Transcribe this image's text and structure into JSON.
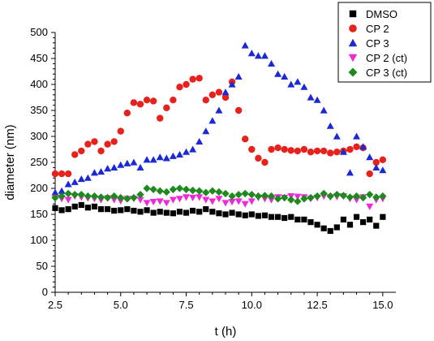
{
  "chart_data": {
    "type": "scatter",
    "xlabel": "t (h)",
    "ylabel": "diameter (nm)",
    "xlim": [
      2.5,
      15.5
    ],
    "ylim": [
      0,
      500
    ],
    "x_ticks": [
      2.5,
      5.0,
      7.5,
      10.0,
      12.5,
      15.0
    ],
    "x_tick_labels": [
      "2.5",
      "5.0",
      "7.5",
      "10.0",
      "12.5",
      "15.0"
    ],
    "y_ticks": [
      0,
      50,
      100,
      150,
      200,
      250,
      300,
      350,
      400,
      450,
      500
    ],
    "y_tick_labels": [
      "0",
      "50",
      "100",
      "150",
      "200",
      "250",
      "300",
      "350",
      "400",
      "450",
      "500"
    ],
    "grid": false,
    "legend_position": "top-right",
    "series": [
      {
        "name": "DMSO",
        "marker": "square",
        "color": "#000000",
        "x": [
          2.5,
          2.75,
          3.0,
          3.25,
          3.5,
          3.75,
          4.0,
          4.25,
          4.5,
          4.75,
          5.0,
          5.25,
          5.5,
          5.75,
          6.0,
          6.25,
          6.5,
          6.75,
          7.0,
          7.25,
          7.5,
          7.75,
          8.0,
          8.25,
          8.5,
          8.75,
          9.0,
          9.25,
          9.5,
          9.75,
          10.0,
          10.25,
          10.5,
          10.75,
          11.0,
          11.25,
          11.5,
          11.75,
          12.0,
          12.25,
          12.5,
          12.75,
          13.0,
          13.25,
          13.5,
          13.75,
          14.0,
          14.25,
          14.5,
          14.75,
          15.0
        ],
        "y": [
          162,
          158,
          160,
          165,
          168,
          163,
          165,
          160,
          160,
          157,
          158,
          160,
          157,
          155,
          158,
          153,
          155,
          153,
          152,
          155,
          153,
          157,
          155,
          160,
          155,
          152,
          150,
          153,
          150,
          148,
          150,
          147,
          148,
          145,
          145,
          143,
          145,
          140,
          140,
          135,
          130,
          123,
          118,
          125,
          140,
          130,
          145,
          135,
          140,
          128,
          145
        ]
      },
      {
        "name": "CP 2",
        "marker": "circle",
        "color": "#e8211c",
        "x": [
          2.5,
          2.75,
          3.0,
          3.25,
          3.5,
          3.75,
          4.0,
          4.25,
          4.5,
          4.75,
          5.0,
          5.25,
          5.5,
          5.75,
          6.0,
          6.25,
          6.5,
          6.75,
          7.0,
          7.25,
          7.5,
          7.75,
          8.0,
          8.25,
          8.5,
          8.75,
          9.0,
          9.25,
          9.5,
          9.75,
          10.0,
          10.25,
          10.5,
          10.75,
          11.0,
          11.25,
          11.5,
          11.75,
          12.0,
          12.25,
          12.5,
          12.75,
          13.0,
          13.25,
          13.5,
          13.75,
          14.0,
          14.25,
          14.5,
          14.75,
          15.0
        ],
        "y": [
          228,
          228,
          228,
          265,
          272,
          285,
          290,
          272,
          285,
          290,
          310,
          345,
          365,
          362,
          370,
          368,
          335,
          355,
          370,
          395,
          400,
          410,
          412,
          370,
          380,
          385,
          375,
          405,
          350,
          295,
          275,
          258,
          250,
          275,
          278,
          275,
          273,
          272,
          275,
          270,
          272,
          272,
          268,
          270,
          272,
          275,
          280,
          278,
          228,
          250,
          255
        ]
      },
      {
        "name": "CP 3",
        "marker": "triangle-up",
        "color": "#1a28d6",
        "x": [
          2.5,
          2.75,
          3.0,
          3.25,
          3.5,
          3.75,
          4.0,
          4.25,
          4.5,
          4.75,
          5.0,
          5.25,
          5.5,
          5.75,
          6.0,
          6.25,
          6.5,
          6.75,
          7.0,
          7.25,
          7.5,
          7.75,
          8.0,
          8.25,
          8.5,
          8.75,
          9.0,
          9.25,
          9.5,
          9.75,
          10.0,
          10.25,
          10.5,
          10.75,
          11.0,
          11.25,
          11.5,
          11.75,
          12.0,
          12.25,
          12.5,
          12.75,
          13.0,
          13.25,
          13.5,
          13.75,
          14.0,
          14.25,
          14.5,
          14.75,
          15.0
        ],
        "y": [
          192,
          195,
          208,
          212,
          218,
          220,
          230,
          232,
          238,
          240,
          245,
          248,
          250,
          240,
          255,
          255,
          260,
          258,
          262,
          265,
          270,
          275,
          290,
          310,
          330,
          350,
          385,
          400,
          415,
          475,
          460,
          455,
          455,
          440,
          420,
          415,
          400,
          405,
          395,
          375,
          370,
          350,
          320,
          300,
          270,
          230,
          300,
          280,
          260,
          240,
          235
        ]
      },
      {
        "name": "CP 2 (ct)",
        "marker": "triangle-down",
        "color": "#ee2ad8",
        "x": [
          2.5,
          2.75,
          3.0,
          3.25,
          3.5,
          3.75,
          4.0,
          4.25,
          4.5,
          4.75,
          5.0,
          5.25,
          5.5,
          5.75,
          6.0,
          6.25,
          6.5,
          6.75,
          7.0,
          7.25,
          7.5,
          7.75,
          8.0,
          8.25,
          8.5,
          8.75,
          9.0,
          9.25,
          9.5,
          9.75,
          10.0,
          10.25,
          10.5,
          10.75,
          11.0,
          11.25,
          11.5,
          11.75,
          12.0,
          12.25,
          12.5,
          12.75,
          13.0,
          13.25,
          13.5,
          13.75,
          14.0,
          14.25,
          14.5,
          14.75,
          15.0
        ],
        "y": [
          182,
          180,
          178,
          185,
          183,
          181,
          180,
          178,
          181,
          178,
          176,
          180,
          180,
          178,
          172,
          174,
          175,
          172,
          178,
          180,
          183,
          182,
          183,
          178,
          175,
          180,
          172,
          174,
          175,
          170,
          175,
          182,
          180,
          178,
          183,
          182,
          185,
          184,
          183,
          180,
          182,
          185,
          183,
          184,
          185,
          180,
          178,
          183,
          165,
          178,
          180
        ]
      },
      {
        "name": "CP 3 (ct)",
        "marker": "diamond",
        "color": "#1e8a1e",
        "x": [
          2.5,
          2.75,
          3.0,
          3.25,
          3.5,
          3.75,
          4.0,
          4.25,
          4.5,
          4.75,
          5.0,
          5.25,
          5.5,
          5.75,
          6.0,
          6.25,
          6.5,
          6.75,
          7.0,
          7.25,
          7.5,
          7.75,
          8.0,
          8.25,
          8.5,
          8.75,
          9.0,
          9.25,
          9.5,
          9.75,
          10.0,
          10.25,
          10.5,
          10.75,
          11.0,
          11.25,
          11.5,
          11.75,
          12.0,
          12.25,
          12.5,
          12.75,
          13.0,
          13.25,
          13.5,
          13.75,
          14.0,
          14.25,
          14.5,
          14.75,
          15.0
        ],
        "y": [
          182,
          185,
          190,
          188,
          188,
          185,
          185,
          183,
          182,
          185,
          182,
          180,
          182,
          188,
          200,
          198,
          195,
          193,
          198,
          200,
          198,
          196,
          195,
          192,
          195,
          193,
          190,
          185,
          188,
          190,
          188,
          185,
          186,
          185,
          180,
          182,
          178,
          175,
          180,
          182,
          185,
          190,
          185,
          188,
          186,
          183,
          185,
          182,
          188,
          183,
          185
        ]
      }
    ]
  }
}
